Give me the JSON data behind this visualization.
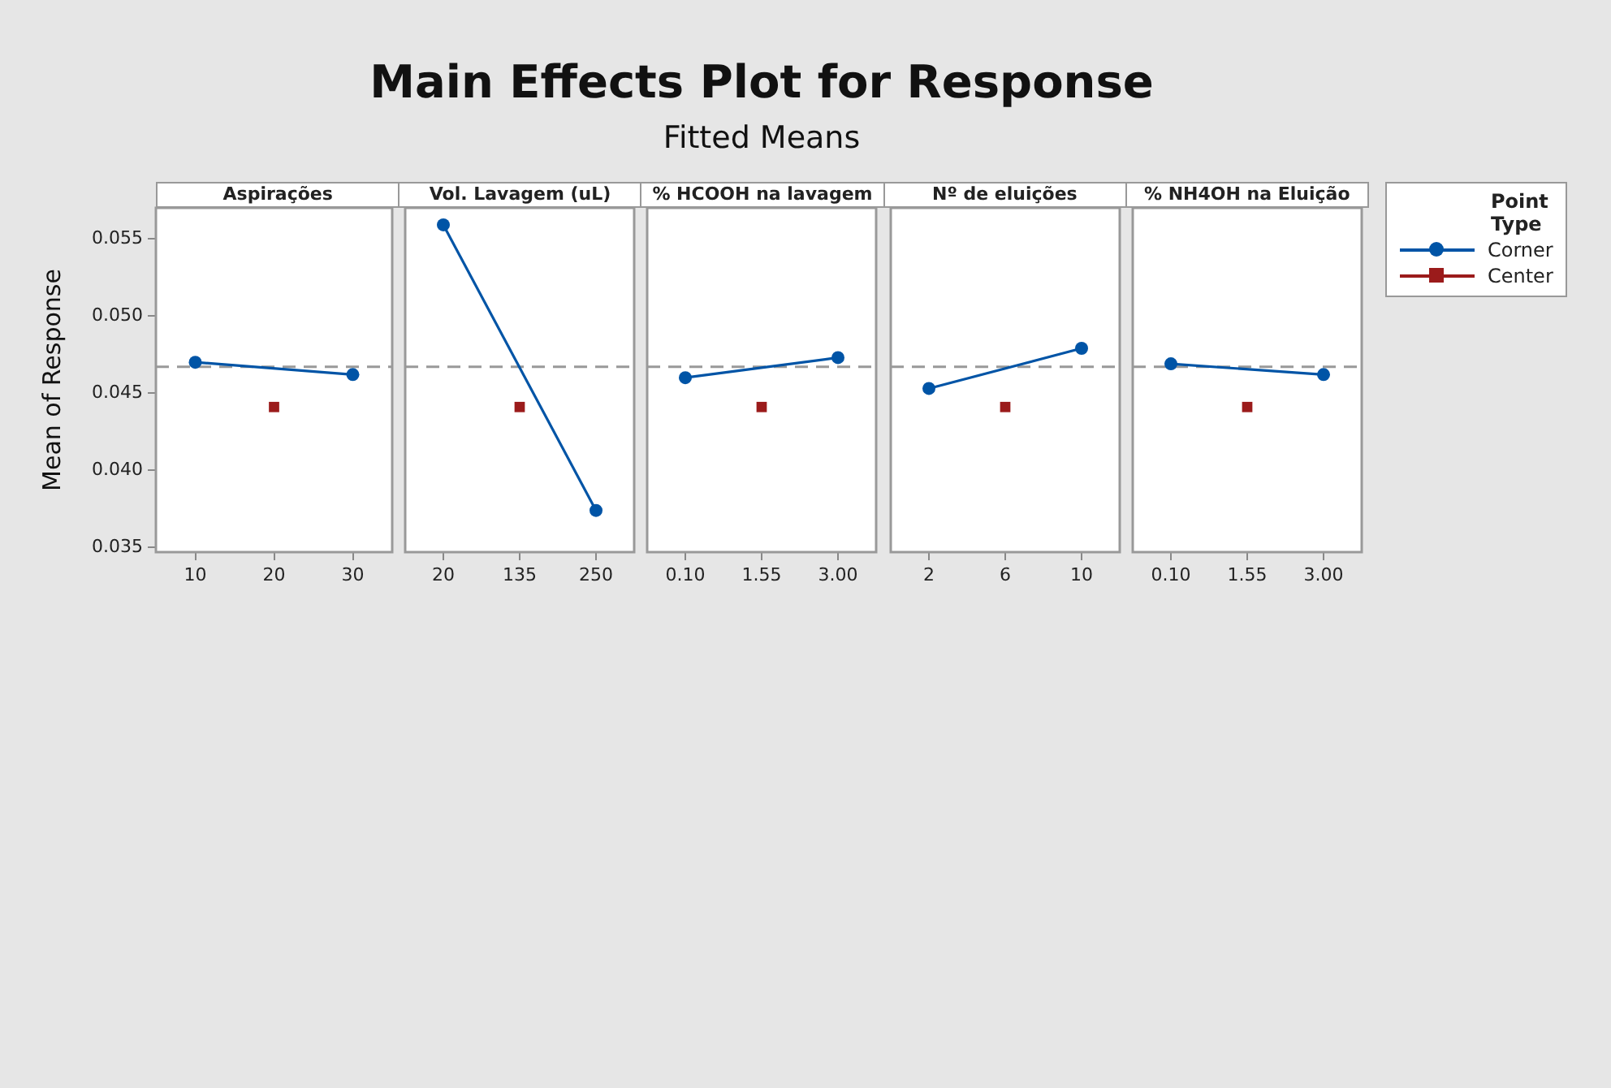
{
  "chart_data": [
    {
      "type": "line",
      "xlabel": "Aspirações",
      "ylabel": "Mean of Response",
      "categories": [
        "10",
        "20",
        "30"
      ],
      "ylim": [
        0.0347,
        0.057
      ],
      "yticks": [
        0.035,
        {
          "value": 0.04,
          "label": "0.040"
        },
        0.045,
        {
          "value": 0.05,
          "label": "0.050"
        },
        0.055
      ],
      "series": [
        {
          "type": "line",
          "marker": "circle",
          "color": "#0054a6",
          "values": [
            0.047,
            null,
            0.0462
          ]
        },
        {
          "type": "scatter",
          "marker": "square",
          "color": "#9b1b1b",
          "values": [
            null,
            0.0441,
            null
          ]
        }
      ],
      "ref_lines": [
        {
          "axis": "y",
          "value": 0.0467,
          "color": "#999999",
          "line_style": "dashed"
        }
      ]
    },
    {
      "type": "line",
      "xlabel": "Vol. Lavagem (uL)",
      "categories": [
        "20",
        "135",
        "250"
      ],
      "ylim": [
        0.0347,
        0.057
      ],
      "tick_labels": "x",
      "series": [
        {
          "type": "line",
          "marker": "circle",
          "color": "#0054a6",
          "values": [
            0.0559,
            null,
            0.0374
          ]
        },
        {
          "type": "scatter",
          "marker": "square",
          "color": "#9b1b1b",
          "values": [
            null,
            0.0441,
            null
          ]
        }
      ],
      "ref_lines": [
        {
          "axis": "y",
          "value": 0.0467,
          "color": "#999999",
          "line_style": "dashed"
        }
      ]
    },
    {
      "type": "line",
      "title": "Main Effects Plot for Response",
      "subtitle": "Fitted Means",
      "xlabel": "% HCOOH na lavagem",
      "categories": [
        "0.10",
        "1.55",
        "3.00"
      ],
      "ylim": [
        0.0347,
        0.057
      ],
      "tick_labels": "x",
      "series": [
        {
          "type": "line",
          "marker": "circle",
          "color": "#0054a6",
          "values": [
            0.046,
            null,
            0.0473
          ]
        },
        {
          "type": "scatter",
          "marker": "square",
          "color": "#9b1b1b",
          "values": [
            null,
            0.0441,
            null
          ]
        }
      ],
      "ref_lines": [
        {
          "axis": "y",
          "value": 0.0467,
          "color": "#999999",
          "line_style": "dashed"
        }
      ]
    },
    {
      "type": "line",
      "xlabel": "Nº de eluições",
      "categories": [
        "2",
        "6",
        "10"
      ],
      "ylim": [
        0.0347,
        0.057
      ],
      "tick_labels": "x",
      "series": [
        {
          "type": "line",
          "marker": "circle",
          "color": "#0054a6",
          "values": [
            0.0453,
            null,
            0.0479
          ]
        },
        {
          "type": "scatter",
          "marker": "square",
          "color": "#9b1b1b",
          "values": [
            null,
            0.0441,
            null
          ]
        }
      ],
      "ref_lines": [
        {
          "axis": "y",
          "value": 0.0467,
          "color": "#999999",
          "line_style": "dashed"
        }
      ]
    },
    {
      "type": "line",
      "xlabel": "% NH4OH na Eluição",
      "categories": [
        "0.10",
        "1.55",
        "3.00"
      ],
      "ylim": [
        0.0347,
        0.057
      ],
      "tick_labels": "x",
      "legend": "right",
      "legend_title": "Point Type",
      "series": [
        {
          "name": "Corner",
          "type": "line",
          "marker": "circle",
          "color": "#0054a6",
          "values": [
            0.0469,
            null,
            0.0462
          ]
        },
        {
          "name": "Center",
          "type": "scatter",
          "marker": "square",
          "color": "#9b1b1b",
          "values": [
            null,
            0.0441,
            null
          ]
        }
      ],
      "ref_lines": [
        {
          "axis": "y",
          "value": 0.0467,
          "color": "#999999",
          "line_style": "dashed"
        }
      ]
    }
  ]
}
